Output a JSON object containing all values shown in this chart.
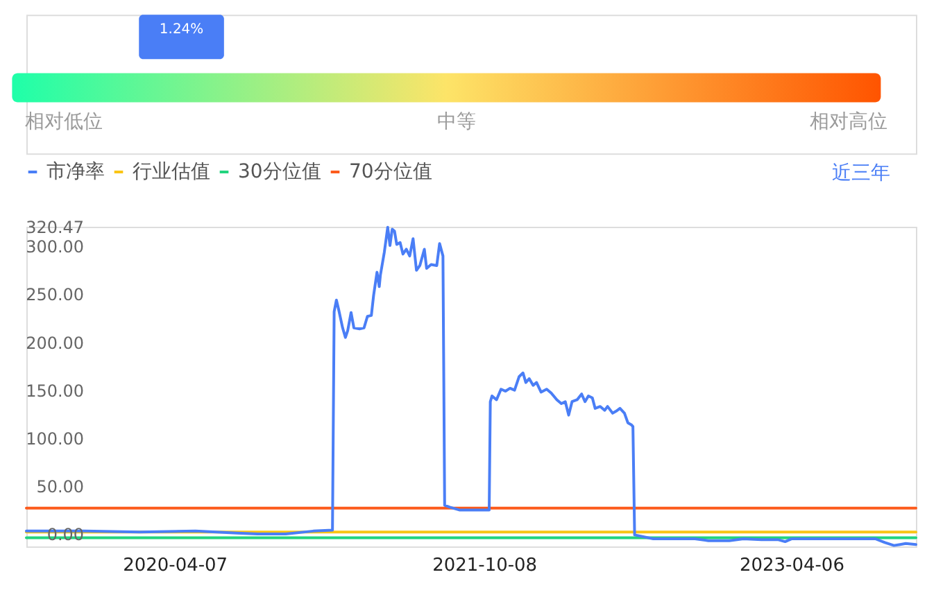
{
  "chart_data": [
    {
      "type": "line",
      "legend": "top left",
      "grid": false,
      "annotations": [
        "近三年"
      ],
      "xlim": [
        "2019-07-19",
        "2023-11-13"
      ],
      "xticks": [
        "2020-04-07",
        "2021-10-08",
        "2023-04-06"
      ],
      "ylim": [
        -13,
        320.47
      ],
      "yticks": [
        {
          "value": 0,
          "label": "0.00"
        },
        {
          "value": 50,
          "label": "50.00"
        },
        {
          "value": 100,
          "label": "100.00"
        },
        {
          "value": 150,
          "label": "150.00"
        },
        {
          "value": 200,
          "label": "200.00"
        },
        {
          "value": 250,
          "label": "250.00"
        },
        {
          "value": 300,
          "label": "300.00"
        },
        320.47
      ],
      "x": [
        "2019-07-19",
        "2019-10-30",
        "2020-02-05",
        "2020-05-14",
        "2020-07-27",
        "2020-09-01",
        "2020-10-21",
        "2020-12-09",
        "2021-01-12",
        "2021-01-15",
        "2021-01-19",
        "2021-01-23",
        "2021-01-30",
        "2021-02-04",
        "2021-02-08",
        "2021-02-14",
        "2021-02-19",
        "2021-03-01",
        "2021-03-09",
        "2021-03-15",
        "2021-03-22",
        "2021-03-26",
        "2021-04-01",
        "2021-04-05",
        "2021-04-07",
        "2021-04-14",
        "2021-04-20",
        "2021-04-24",
        "2021-04-28",
        "2021-05-02",
        "2021-05-06",
        "2021-05-12",
        "2021-05-17",
        "2021-05-23",
        "2021-05-29",
        "2021-06-04",
        "2021-06-10",
        "2021-06-16",
        "2021-06-24",
        "2021-06-28",
        "2021-07-06",
        "2021-07-16",
        "2021-07-21",
        "2021-07-27",
        "2021-07-30",
        "2021-08-08",
        "2021-08-25",
        "2021-09-10",
        "2021-09-30",
        "2021-10-17",
        "2021-10-19",
        "2021-10-22",
        "2021-10-30",
        "2021-11-07",
        "2021-11-15",
        "2021-11-23",
        "2021-12-01",
        "2021-12-09",
        "2021-12-16",
        "2021-12-21",
        "2021-12-27",
        "2022-01-03",
        "2022-01-09",
        "2022-01-17",
        "2022-01-27",
        "2022-02-04",
        "2022-02-14",
        "2022-02-22",
        "2022-03-01",
        "2022-03-07",
        "2022-03-13",
        "2022-03-22",
        "2022-03-30",
        "2022-04-05",
        "2022-04-11",
        "2022-04-18",
        "2022-04-23",
        "2022-05-02",
        "2022-05-10",
        "2022-05-15",
        "2022-05-24",
        "2022-05-30",
        "2022-06-06",
        "2022-06-14",
        "2022-06-20",
        "2022-06-26",
        "2022-06-29",
        "2022-07-02",
        "2022-08-04",
        "2022-10-17",
        "2022-11-10",
        "2022-12-17",
        "2023-01-11",
        "2023-02-12",
        "2023-03-14",
        "2023-03-26",
        "2023-04-07",
        "2023-06-20",
        "2023-09-02",
        "2023-09-19",
        "2023-10-05",
        "2023-10-16",
        "2023-10-26",
        "2023-11-13"
      ],
      "series": [
        {
          "name": "市净率",
          "color": "#4a7ef6",
          "values": [
            3,
            3,
            2,
            3,
            1,
            0,
            0,
            3,
            4,
            232,
            244,
            234,
            215,
            205,
            212,
            231,
            215,
            214,
            215,
            227,
            228,
            249,
            273,
            258,
            270,
            294,
            320,
            301,
            318,
            316,
            302,
            304,
            292,
            297,
            290,
            308,
            275,
            280,
            297,
            277,
            281,
            280,
            303,
            290,
            30,
            28,
            25,
            25,
            25,
            25,
            138,
            144,
            140,
            151,
            149,
            152,
            150,
            164,
            168,
            158,
            162,
            155,
            158,
            148,
            151,
            147,
            140,
            136,
            138,
            124,
            138,
            140,
            146,
            138,
            144,
            142,
            131,
            133,
            129,
            133,
            126,
            128,
            131,
            126,
            116,
            114,
            112,
            -1,
            -5,
            -5,
            -7,
            -7,
            -5,
            -6,
            -6,
            -8,
            -5,
            -5,
            -5,
            -9,
            -12,
            -11,
            -10,
            -11
          ]
        },
        {
          "name": "行业估值",
          "color": "#fac515",
          "x": [
            "2019-07-19",
            "2023-11-13"
          ],
          "values": [
            2,
            2
          ]
        },
        {
          "name": "30分位值",
          "color": "#22d47e",
          "x": [
            "2019-07-19",
            "2023-11-13"
          ],
          "values": [
            -4,
            -4
          ]
        },
        {
          "name": "70分位值",
          "color": "#fc5b1c",
          "x": [
            "2019-07-19",
            "2023-11-13"
          ],
          "values": [
            27,
            27
          ]
        }
      ]
    },
    {
      "type": "other",
      "categories": [
        "相对低位",
        "中等",
        "相对高位"
      ],
      "colors": [
        "#1effa9",
        "#fde468",
        "#ff5400"
      ],
      "annotations": [
        "1.24%"
      ]
    }
  ]
}
